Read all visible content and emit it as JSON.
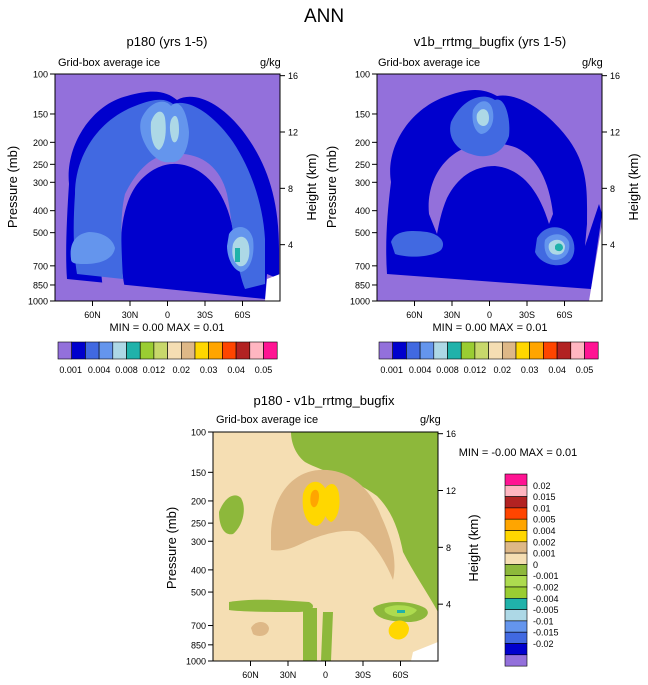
{
  "page_title": "ANN",
  "colors": {
    "c_001": "#9370DB",
    "c_004a": "#0000CD",
    "c_004": "#4169E1",
    "c_006": "#6495ED",
    "c_008": "#ADD8E6",
    "c_010": "#20B2AA",
    "c_012": "#9ACD32",
    "c_015": "#C8D86B",
    "c_02": "#F5DEB3",
    "c_025": "#DEB887",
    "c_03": "#FFD700",
    "c_035": "#FFA500",
    "c_04": "#FF4500",
    "c_045": "#B22222",
    "c_05a": "#FFB6C1",
    "c_05": "#FF1493",
    "diff_wheat": "#F5DEB3",
    "diff_tan": "#DEB887",
    "diff_green": "#8DB83B",
    "diff_gold": "#FFD700",
    "diff_orange": "#FFA500",
    "diff_lightgreen": "#ADDB4F",
    "diff_teal": "#20B2AA",
    "diff_lightblue": "#ADD8E6"
  },
  "chart_data": [
    {
      "type": "contour",
      "title": "p180 (yrs 1-5)",
      "left_subtitle": "Grid-box average ice",
      "right_subtitle": "g/kg",
      "ylabel": "Pressure (mb)",
      "ylabel_right": "Height (km)",
      "xticks": [
        "60N",
        "30N",
        "0",
        "30S",
        "60S"
      ],
      "yticks": [
        "100",
        "150",
        "200",
        "250",
        "300",
        "400",
        "500",
        "700",
        "850",
        "1000"
      ],
      "ytick_values": [
        100,
        150,
        200,
        250,
        300,
        400,
        500,
        700,
        850,
        1000
      ],
      "right_ticks": [
        "16",
        "12",
        "8",
        "4"
      ],
      "right_tick_values": [
        16,
        12,
        8,
        4
      ],
      "stats": "MIN =  0.00  MAX =  0.01",
      "ylim": [
        1000,
        100
      ],
      "xlim": [
        90,
        -90
      ]
    },
    {
      "type": "contour",
      "title": "v1b_rrtmg_bugfix (yrs 1-5)",
      "left_subtitle": "Grid-box average ice",
      "right_subtitle": "g/kg",
      "ylabel": "Pressure (mb)",
      "ylabel_right": "Height (km)",
      "xticks": [
        "60N",
        "30N",
        "0",
        "30S",
        "60S"
      ],
      "yticks": [
        "100",
        "150",
        "200",
        "250",
        "300",
        "400",
        "500",
        "700",
        "850",
        "1000"
      ],
      "ytick_values": [
        100,
        150,
        200,
        250,
        300,
        400,
        500,
        700,
        850,
        1000
      ],
      "right_ticks": [
        "16",
        "12",
        "8",
        "4"
      ],
      "right_tick_values": [
        16,
        12,
        8,
        4
      ],
      "stats": "MIN =  0.00  MAX =  0.01",
      "ylim": [
        1000,
        100
      ],
      "xlim": [
        90,
        -90
      ]
    },
    {
      "type": "contour",
      "title": "p180 - v1b_rrtmg_bugfix",
      "left_subtitle": "Grid-box average ice",
      "right_subtitle": "g/kg",
      "ylabel": "Pressure (mb)",
      "ylabel_right": "Height (km)",
      "xticks": [
        "60N",
        "30N",
        "0",
        "30S",
        "60S"
      ],
      "yticks": [
        "100",
        "150",
        "200",
        "250",
        "300",
        "400",
        "500",
        "700",
        "850",
        "1000"
      ],
      "ytick_values": [
        100,
        150,
        200,
        250,
        300,
        400,
        500,
        700,
        850,
        1000
      ],
      "right_ticks": [
        "16",
        "12",
        "8",
        "4"
      ],
      "right_tick_values": [
        16,
        12,
        8,
        4
      ],
      "stats": "MIN = -0.00  MAX =  0.01",
      "ylim": [
        1000,
        100
      ],
      "xlim": [
        90,
        -90
      ]
    }
  ],
  "legend_top": {
    "labels": [
      "0.001",
      "0.004",
      "0.008",
      "0.012",
      "0.02",
      "0.03",
      "0.04",
      "0.05"
    ],
    "colors": [
      "#9370DB",
      "#0000CD",
      "#4169E1",
      "#6495ED",
      "#ADD8E6",
      "#20B2AA",
      "#9ACD32",
      "#C8D86B",
      "#F5DEB3",
      "#DEB887",
      "#FFD700",
      "#FFA500",
      "#FF4500",
      "#B22222",
      "#FFB6C1",
      "#FF1493"
    ]
  },
  "legend_diff": {
    "labels": [
      "0.02",
      "0.015",
      "0.01",
      "0.005",
      "0.004",
      "0.002",
      "0.001",
      "0",
      "-0.001",
      "-0.002",
      "-0.004",
      "-0.005",
      "-0.01",
      "-0.015",
      "-0.02"
    ],
    "colors": [
      "#FF1493",
      "#FFB6C1",
      "#B22222",
      "#FF4500",
      "#FFA500",
      "#FFD700",
      "#DEB887",
      "#F5DEB3",
      "#8DB83B",
      "#ADDB4F",
      "#9ACD32",
      "#20B2AA",
      "#ADD8E6",
      "#6495ED",
      "#4169E1",
      "#0000CD",
      "#9370DB"
    ]
  }
}
